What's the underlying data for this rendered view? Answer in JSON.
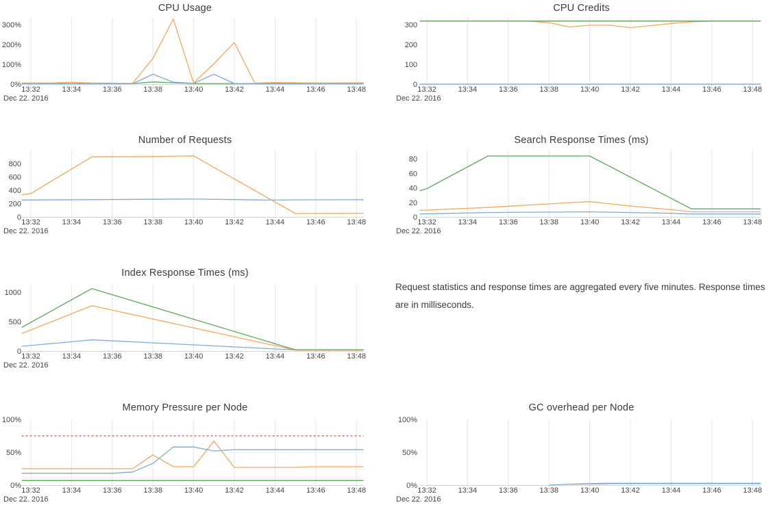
{
  "page": {
    "background": "#ffffff"
  },
  "palette": {
    "blue": "#7cabd8",
    "orange": "#f5a55c",
    "green": "#5aa75a",
    "threshold_red": "#ed7d72",
    "grid": "#e5e5e5",
    "axis": "#ccd6eb",
    "label_text": "#454545",
    "title_text": "#3a3a42"
  },
  "x_axis": {
    "tick_labels": [
      "13:32",
      "13:34",
      "13:36",
      "13:38",
      "13:40",
      "13:42",
      "13:44",
      "13:46",
      "13:48"
    ],
    "tick_minutes": [
      2,
      4,
      6,
      8,
      10,
      12,
      14,
      16,
      18
    ],
    "date_label": "Dec 22. 2016",
    "x_encoding": "minutes after 13:30 on Dec 22, 2016"
  },
  "note": {
    "text": "Request statistics and response times are aggregated every five minutes. Response times are in milliseconds."
  },
  "chart_data": [
    {
      "id": "cpu-usage",
      "type": "line",
      "title": "CPU Usage",
      "y_ticks": [
        {
          "v": 0,
          "label": "0%"
        },
        {
          "v": 100,
          "label": "100%"
        },
        {
          "v": 200,
          "label": "200%"
        },
        {
          "v": 300,
          "label": "300%"
        }
      ],
      "ylim": [
        0,
        335
      ],
      "legend": "none",
      "grid": "vertical-only",
      "series": [
        {
          "color": "green",
          "points": [
            [
              1.55,
              3
            ],
            [
              7,
              3
            ],
            [
              8,
              11
            ],
            [
              9,
              7
            ],
            [
              10,
              3
            ],
            [
              13,
              3
            ],
            [
              18.35,
              3
            ]
          ]
        },
        {
          "color": "blue",
          "points": [
            [
              1.55,
              2
            ],
            [
              7,
              2
            ],
            [
              8,
              50
            ],
            [
              9,
              10
            ],
            [
              10,
              4
            ],
            [
              11,
              50
            ],
            [
              12,
              3
            ],
            [
              13,
              2
            ],
            [
              18.35,
              2
            ]
          ]
        },
        {
          "color": "orange",
          "points": [
            [
              1.55,
              6
            ],
            [
              3,
              6
            ],
            [
              4,
              9
            ],
            [
              5,
              6
            ],
            [
              6,
              5
            ],
            [
              7,
              4
            ],
            [
              8,
              130
            ],
            [
              9,
              328
            ],
            [
              10,
              6
            ],
            [
              11,
              103
            ],
            [
              12,
              210
            ],
            [
              13,
              6
            ],
            [
              14,
              8
            ],
            [
              16,
              6
            ],
            [
              18.35,
              7
            ]
          ]
        }
      ]
    },
    {
      "id": "cpu-credits",
      "type": "line",
      "title": "CPU Credits",
      "y_ticks": [
        {
          "v": 0,
          "label": "0"
        },
        {
          "v": 100,
          "label": "100"
        },
        {
          "v": 200,
          "label": "200"
        },
        {
          "v": 300,
          "label": "300"
        }
      ],
      "ylim": [
        0,
        335
      ],
      "legend": "none",
      "grid": "vertical-only",
      "series": [
        {
          "color": "blue",
          "points": [
            [
              1.65,
              0
            ],
            [
              18.4,
              0
            ]
          ]
        },
        {
          "color": "orange",
          "points": [
            [
              1.65,
              318
            ],
            [
              7,
              318
            ],
            [
              8,
              310
            ],
            [
              9,
              288
            ],
            [
              10,
              297
            ],
            [
              11,
              297
            ],
            [
              12,
              285
            ],
            [
              13,
              295
            ],
            [
              14,
              306
            ],
            [
              15,
              314
            ],
            [
              16,
              318
            ],
            [
              18.4,
              318
            ]
          ]
        },
        {
          "color": "green",
          "points": [
            [
              1.65,
              318
            ],
            [
              18.4,
              318
            ]
          ]
        }
      ]
    },
    {
      "id": "number-of-requests",
      "type": "line",
      "title": "Number of Requests",
      "y_ticks": [
        {
          "v": 0,
          "label": "0"
        },
        {
          "v": 200,
          "label": "200"
        },
        {
          "v": 400,
          "label": "400"
        },
        {
          "v": 600,
          "label": "600"
        },
        {
          "v": 800,
          "label": "800"
        }
      ],
      "ylim": [
        0,
        985
      ],
      "legend": "none",
      "grid": "vertical-only",
      "series": [
        {
          "color": "blue",
          "points": [
            [
              1.55,
              253
            ],
            [
              5,
              258
            ],
            [
              8,
              265
            ],
            [
              10,
              268
            ],
            [
              12,
              260
            ],
            [
              13.5,
              252
            ],
            [
              15,
              255
            ],
            [
              18.35,
              258
            ]
          ]
        },
        {
          "color": "orange",
          "points": [
            [
              1.55,
              330
            ],
            [
              2,
              350
            ],
            [
              5,
              900
            ],
            [
              8,
              905
            ],
            [
              10,
              915
            ],
            [
              15,
              50
            ],
            [
              18.35,
              52
            ]
          ]
        }
      ]
    },
    {
      "id": "search-response-times",
      "type": "line",
      "title": "Search Response Times (ms)",
      "y_ticks": [
        {
          "v": 0,
          "label": "0"
        },
        {
          "v": 20,
          "label": "20"
        },
        {
          "v": 40,
          "label": "40"
        },
        {
          "v": 60,
          "label": "60"
        },
        {
          "v": 80,
          "label": "80"
        }
      ],
      "ylim": [
        0,
        92
      ],
      "legend": "none",
      "grid": "vertical-only",
      "series": [
        {
          "color": "blue",
          "points": [
            [
              1.65,
              4
            ],
            [
              5,
              6
            ],
            [
              10,
              7
            ],
            [
              14,
              5
            ],
            [
              15,
              4
            ],
            [
              18.4,
              4
            ]
          ]
        },
        {
          "color": "orange",
          "points": [
            [
              1.65,
              9
            ],
            [
              5,
              13
            ],
            [
              8,
              18
            ],
            [
              10,
              21
            ],
            [
              12,
              15
            ],
            [
              14,
              10
            ],
            [
              15,
              7
            ],
            [
              18.4,
              7
            ]
          ]
        },
        {
          "color": "green",
          "points": [
            [
              1.65,
              36
            ],
            [
              2,
              39
            ],
            [
              5,
              84
            ],
            [
              10,
              84
            ],
            [
              15,
              11
            ],
            [
              18.4,
              11
            ]
          ]
        }
      ]
    },
    {
      "id": "index-response-times",
      "type": "line",
      "title": "Index Response Times (ms)",
      "y_ticks": [
        {
          "v": 0,
          "label": "0"
        },
        {
          "v": 500,
          "label": "500"
        },
        {
          "v": 1000,
          "label": "1000"
        }
      ],
      "ylim": [
        0,
        1120
      ],
      "legend": "none",
      "grid": "vertical-only",
      "series": [
        {
          "color": "blue",
          "points": [
            [
              1.55,
              80
            ],
            [
              5,
              190
            ],
            [
              10,
              105
            ],
            [
              15,
              18
            ],
            [
              18.35,
              18
            ]
          ]
        },
        {
          "color": "orange",
          "points": [
            [
              1.55,
              295
            ],
            [
              5,
              770
            ],
            [
              15,
              15
            ],
            [
              18.35,
              15
            ]
          ]
        },
        {
          "color": "green",
          "points": [
            [
              1.55,
              400
            ],
            [
              5,
              1060
            ],
            [
              15,
              20
            ],
            [
              18.35,
              20
            ]
          ]
        }
      ]
    },
    {
      "id": "memory-pressure-per-node",
      "type": "line",
      "title": "Memory Pressure per Node",
      "y_ticks": [
        {
          "v": 0,
          "label": "0%"
        },
        {
          "v": 50,
          "label": "50%"
        },
        {
          "v": 100,
          "label": "100%"
        }
      ],
      "ylim": [
        0,
        100
      ],
      "legend": "none",
      "grid": "vertical-only",
      "series": [
        {
          "color": "threshold_red",
          "dashed": true,
          "points": [
            [
              1.55,
              75
            ],
            [
              18.35,
              75
            ]
          ]
        },
        {
          "color": "green",
          "points": [
            [
              1.55,
              7
            ],
            [
              18.35,
              7
            ]
          ]
        },
        {
          "color": "orange",
          "points": [
            [
              1.55,
              25
            ],
            [
              7,
              25
            ],
            [
              8,
              46
            ],
            [
              9,
              28
            ],
            [
              10,
              28
            ],
            [
              11,
              67
            ],
            [
              12,
              27
            ],
            [
              15,
              27
            ],
            [
              16,
              28
            ],
            [
              18.35,
              28
            ]
          ]
        },
        {
          "color": "blue",
          "points": [
            [
              1.55,
              18
            ],
            [
              6,
              18
            ],
            [
              7,
              20
            ],
            [
              8,
              33
            ],
            [
              9,
              58
            ],
            [
              10,
              58
            ],
            [
              11,
              52
            ],
            [
              12,
              54
            ],
            [
              18.35,
              54
            ]
          ]
        }
      ]
    },
    {
      "id": "gc-overhead-per-node",
      "type": "line",
      "title": "GC overhead per Node",
      "y_ticks": [
        {
          "v": 0,
          "label": "0%"
        },
        {
          "v": 50,
          "label": "50%"
        },
        {
          "v": 100,
          "label": "100%"
        }
      ],
      "ylim": [
        0,
        100
      ],
      "legend": "none",
      "grid": "vertical-only",
      "series": [
        {
          "color": "orange",
          "points": [
            [
              9,
              1.2
            ],
            [
              11,
              2
            ],
            [
              18.4,
              2
            ]
          ]
        },
        {
          "color": "blue",
          "points": [
            [
              8,
              0
            ],
            [
              9,
              1.5
            ],
            [
              10,
              2.3
            ],
            [
              11,
              2.8
            ],
            [
              18.4,
              2.8
            ]
          ]
        }
      ]
    }
  ]
}
